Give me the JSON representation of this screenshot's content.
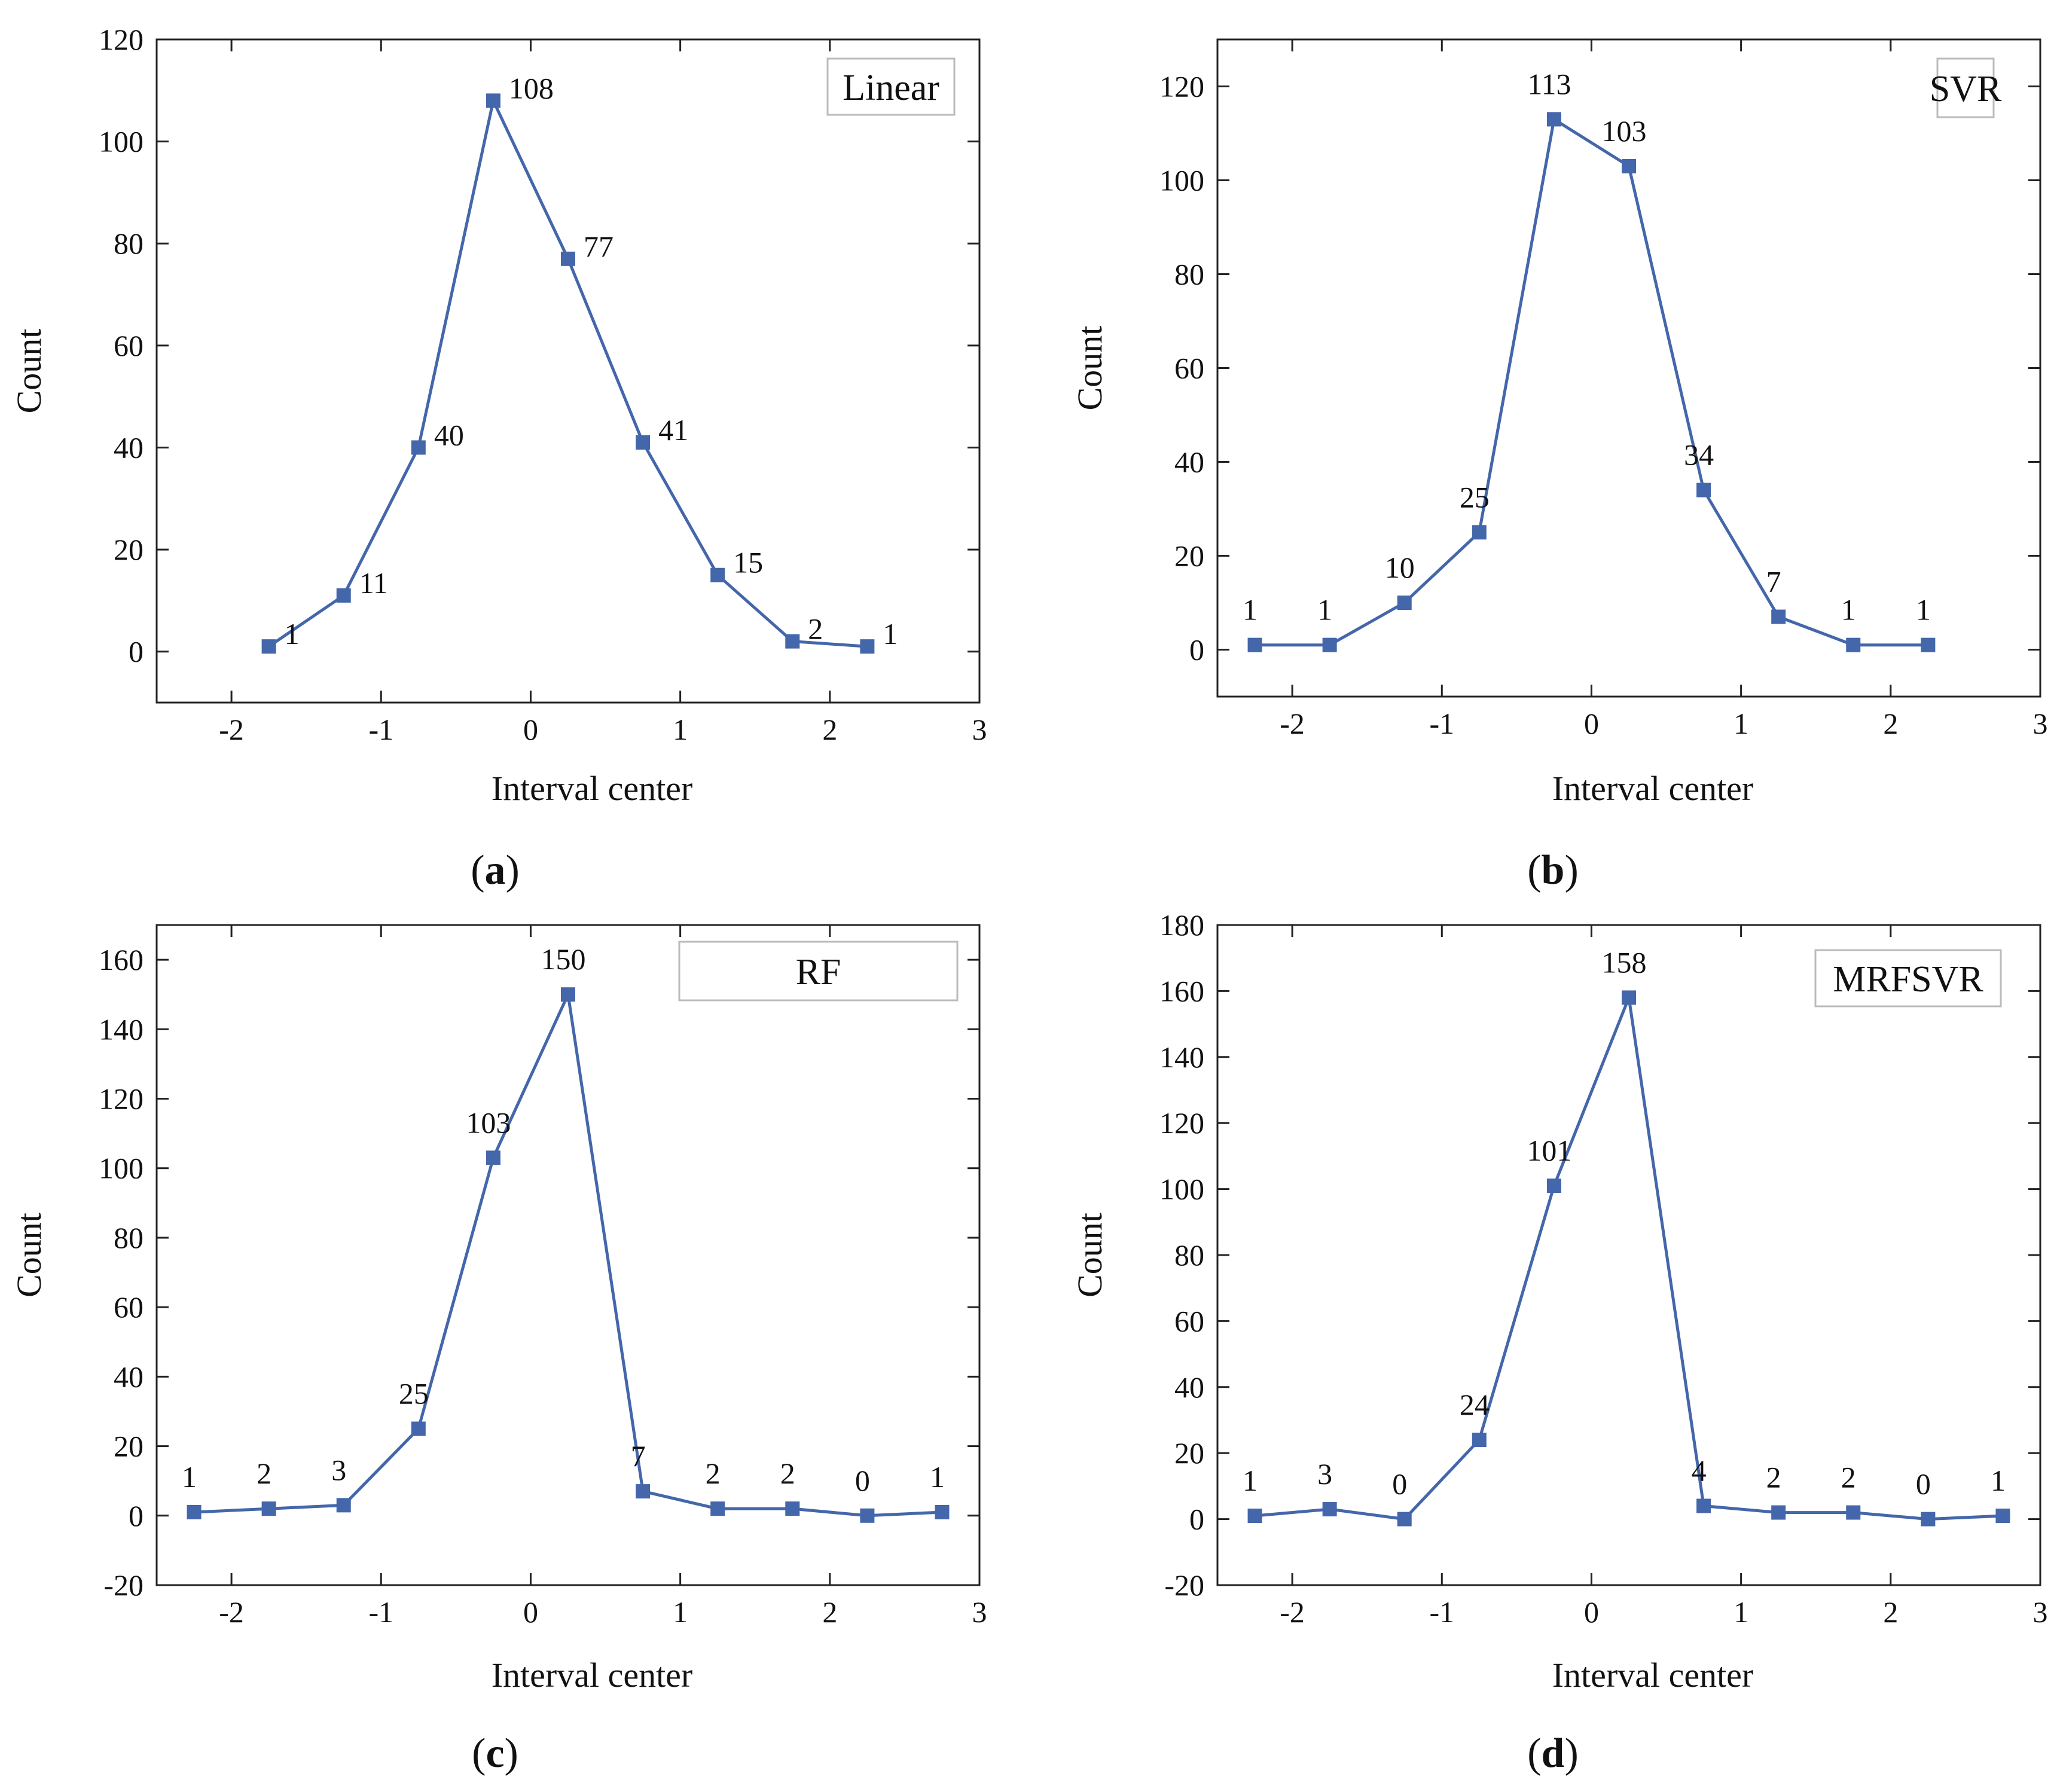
{
  "style": {
    "line_color": "#4466aa",
    "marker_color": "#4466aa",
    "axis_color": "#222222",
    "legend_border": "#bbbbbb"
  },
  "chart_data": [
    {
      "type": "line",
      "panel": "a",
      "title": "Linear",
      "xlabel": "Interval center",
      "ylabel": "Count",
      "xlim": [
        -2.5,
        3
      ],
      "ylim": [
        -10,
        120
      ],
      "xticks": [
        -2,
        -1,
        0,
        1,
        2,
        3
      ],
      "yticks": [
        0,
        20,
        40,
        60,
        80,
        100,
        120
      ],
      "x": [
        -1.75,
        -1.25,
        -0.75,
        -0.25,
        0.25,
        0.75,
        1.25,
        1.75,
        2.25
      ],
      "values": [
        1,
        11,
        40,
        108,
        77,
        41,
        15,
        2,
        1
      ],
      "data_labels": [
        "1",
        "11",
        "40",
        "108",
        "77",
        "41",
        "15",
        "2",
        "1"
      ],
      "caption_letter": "a"
    },
    {
      "type": "line",
      "panel": "b",
      "title": "SVR",
      "xlabel": "Interval center",
      "ylabel": "Count",
      "xlim": [
        -2.5,
        3
      ],
      "ylim": [
        -10,
        130
      ],
      "xticks": [
        -2,
        -1,
        0,
        1,
        2,
        3
      ],
      "yticks": [
        0,
        20,
        40,
        60,
        80,
        100,
        120
      ],
      "x": [
        -2.25,
        -1.75,
        -1.25,
        -0.75,
        -0.25,
        0.25,
        0.75,
        1.25,
        1.75,
        2.25
      ],
      "values": [
        1,
        1,
        10,
        25,
        113,
        103,
        34,
        7,
        1,
        1
      ],
      "data_labels": [
        "1",
        "1",
        "10",
        "25",
        "113",
        "103",
        "34",
        "7",
        "1",
        "1"
      ],
      "caption_letter": "b"
    },
    {
      "type": "line",
      "panel": "c",
      "title": "RF",
      "xlabel": "Interval center",
      "ylabel": "Count",
      "xlim": [
        -2.5,
        3
      ],
      "ylim": [
        -20,
        170
      ],
      "xticks": [
        -2,
        -1,
        0,
        1,
        2,
        3
      ],
      "yticks": [
        -20,
        0,
        20,
        40,
        60,
        80,
        100,
        120,
        140,
        160
      ],
      "x": [
        -2.25,
        -1.75,
        -1.25,
        -0.75,
        -0.25,
        0.25,
        0.75,
        1.25,
        1.75,
        2.25,
        2.75
      ],
      "values": [
        1,
        2,
        3,
        25,
        103,
        150,
        7,
        2,
        2,
        0,
        1
      ],
      "data_labels": [
        "1",
        "2",
        "3",
        "25",
        "103",
        "150",
        "7",
        "2",
        "2",
        "0",
        "1"
      ],
      "caption_letter": "c"
    },
    {
      "type": "line",
      "panel": "d",
      "title": "MRFSVR",
      "xlabel": "Interval center",
      "ylabel": "Count",
      "xlim": [
        -2.5,
        3
      ],
      "ylim": [
        -20,
        180
      ],
      "xticks": [
        -2,
        -1,
        0,
        1,
        2,
        3
      ],
      "yticks": [
        -20,
        0,
        20,
        40,
        60,
        80,
        100,
        120,
        140,
        160,
        180
      ],
      "x": [
        -2.25,
        -1.75,
        -1.25,
        -0.75,
        -0.25,
        0.25,
        0.75,
        1.25,
        1.75,
        2.25,
        2.75
      ],
      "values": [
        1,
        3,
        0,
        24,
        101,
        158,
        4,
        2,
        2,
        0,
        1
      ],
      "data_labels": [
        "1",
        "3",
        "0",
        "24",
        "101",
        "158",
        "4",
        "2",
        "2",
        "0",
        "1"
      ],
      "caption_letter": "d"
    }
  ]
}
